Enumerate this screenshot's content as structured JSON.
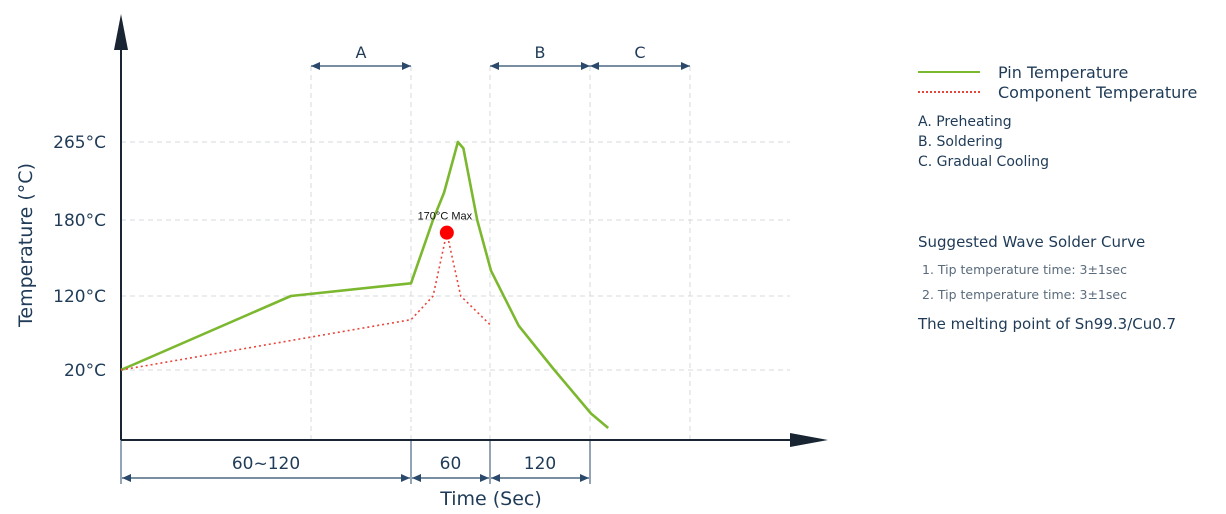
{
  "chart_data": {
    "type": "line",
    "xlabel": "Time (Sec)",
    "ylabel": "Temperature (°C)",
    "y_ticks": [
      "265°C",
      "180°C",
      "120°C",
      "20°C"
    ],
    "time_segments": [
      "60~120",
      "60",
      "120"
    ],
    "phases": [
      {
        "id": "A",
        "span": "Preheating"
      },
      {
        "id": "B",
        "span": "Soldering"
      },
      {
        "id": "C",
        "span": "Gradual Cooling"
      }
    ],
    "series": [
      {
        "name": "Pin Temperature",
        "color": "#7cb82f",
        "style": "solid",
        "points": [
          [
            0,
            20
          ],
          [
            0.586,
            120
          ],
          [
            1.0,
            130
          ],
          [
            1.275,
            180
          ],
          [
            1.414,
            210
          ],
          [
            1.586,
            265
          ],
          [
            1.655,
            258
          ],
          [
            1.828,
            180
          ],
          [
            2.0,
            140
          ],
          [
            2.276,
            80
          ],
          [
            2.621,
            22
          ],
          [
            3.0,
            -40
          ],
          [
            3.172,
            -60
          ]
        ]
      },
      {
        "name": "Component Temperature",
        "color": "#e8443a",
        "style": "dotted",
        "points": [
          [
            0,
            20
          ],
          [
            1.0,
            88
          ],
          [
            1.276,
            120
          ],
          [
            1.448,
            170
          ],
          [
            1.621,
            120
          ],
          [
            2.0,
            80
          ]
        ]
      }
    ],
    "annotations": [
      {
        "text": "170°C Max",
        "x": 1.448,
        "y": 170,
        "marker_color": "#ff0000"
      }
    ],
    "grid": true
  },
  "legend": {
    "pin": "Pin Temperature",
    "component": "Component Temperature"
  },
  "phase_list": [
    "A. Preheating",
    "B. Soldering",
    "C. Gradual Cooling"
  ],
  "notes": {
    "title": "Suggested Wave Solder Curve",
    "items": [
      "1. Tip temperature time: 3±1sec",
      "2. Tip temperature time: 3±1sec"
    ],
    "footer": "The melting point of Sn99.3/Cu0.7"
  },
  "colors": {
    "axis": "#1a2533",
    "text": "#1f3b57",
    "grid": "#d5d9de",
    "pin": "#7cb82f",
    "component": "#e8443a"
  }
}
